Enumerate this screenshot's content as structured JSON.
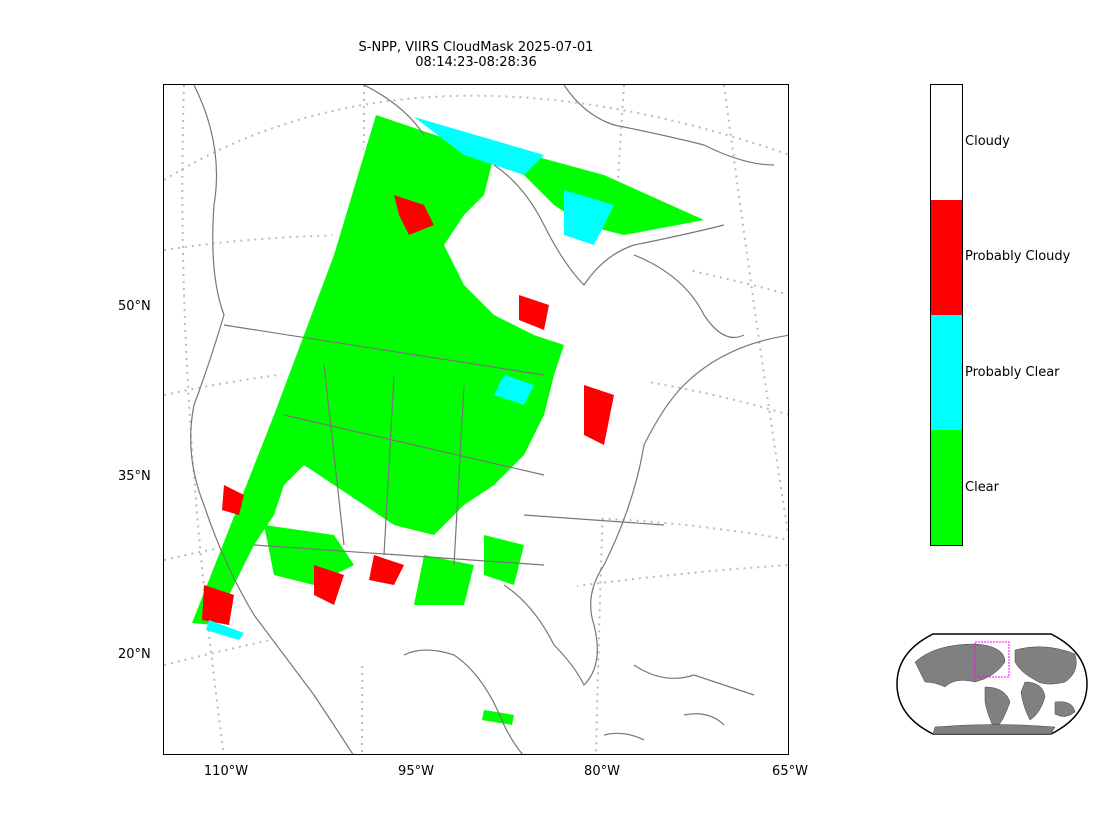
{
  "title": {
    "line1": "S-NPP, VIIRS CloudMask 2025-07-01",
    "line2": "08:14:23-08:28:36"
  },
  "axes": {
    "lat_ticks": [
      "50°N",
      "35°N",
      "20°N"
    ],
    "lon_ticks": [
      "110°W",
      "95°W",
      "80°W",
      "65°W"
    ]
  },
  "colorbar": {
    "categories": [
      {
        "label": "Cloudy",
        "color": "#ffffff"
      },
      {
        "label": "Probably Cloudy",
        "color": "#ff0000"
      },
      {
        "label": "Probably Clear",
        "color": "#00ffff"
      },
      {
        "label": "Clear",
        "color": "#00ff00"
      }
    ]
  },
  "colors": {
    "coastline": "#777777",
    "graticule": "#bbbbbb",
    "land_inset": "#808080",
    "inset_box": "#ff00ff"
  }
}
